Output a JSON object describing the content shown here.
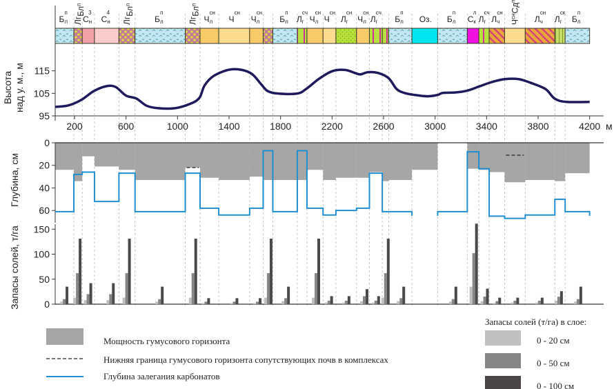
{
  "chart_data": {
    "type": "composite-profile",
    "x_axis": {
      "unit": "м",
      "range": [
        50,
        4250
      ],
      "ticks": [
        200,
        600,
        1000,
        1400,
        1800,
        2200,
        2600,
        3000,
        3400,
        3800,
        4200
      ]
    },
    "boundaries": [
      50,
      195,
      260,
      355,
      545,
      670,
      1060,
      1175,
      1320,
      1560,
      1665,
      1740,
      1930,
      2005,
      2130,
      2230,
      2390,
      2490,
      2590,
      2640,
      2820,
      3020,
      3250,
      3340,
      3420,
      3540,
      3700,
      3930,
      4010,
      4200
    ],
    "soil_strip": {
      "segments": [
        {
          "label": "Б",
          "sub": "л",
          "sup": "п",
          "pattern": "bl"
        },
        {
          "label": "Лг",
          "sub": "",
          "sup": "Бл",
          "pattern": "lg",
          "rotated": true,
          "compact": true
        },
        {
          "label": "С",
          "sub": "н",
          "sup": "3",
          "pattern": "s3"
        },
        {
          "label": "С",
          "sub": "н",
          "sup": "4",
          "pattern": "s4"
        },
        {
          "label": "Лг",
          "sub": "",
          "sup": "Бл",
          "pattern": "lg",
          "rotated": true
        },
        {
          "label": "Б",
          "sub": "л",
          "sup": "п",
          "pattern": "bl"
        },
        {
          "label": "Лг",
          "sub": "",
          "sup": "Бл",
          "pattern": "lg",
          "rotated": true
        },
        {
          "label": "Ч",
          "sub": "л",
          "sup": "сн",
          "pattern": "chl"
        },
        {
          "label": "Ч",
          "sub": "",
          "sup": "сн",
          "pattern": "ch"
        },
        {
          "label": "Ч",
          "sub": "л",
          "sup": "сн",
          "pattern": "chl"
        },
        {
          "label": "",
          "sub": "",
          "sup": "",
          "pattern": "lg"
        },
        {
          "label": "Б",
          "sub": "л",
          "sup": "п",
          "pattern": "bl"
        },
        {
          "label": "Л",
          "sub": "г",
          "sup": "сч",
          "pattern": "stripes"
        },
        {
          "label": "Ч",
          "sub": "л",
          "sup": "сн",
          "pattern": "chl"
        },
        {
          "label": "Ч",
          "sub": "",
          "sup": "сн",
          "pattern": "ch"
        },
        {
          "label": "Л",
          "sub": "г",
          "sup": "сн",
          "pattern": "lgdots"
        },
        {
          "label": "Ч",
          "sub": "л",
          "sup": "сн",
          "pattern": "chl"
        },
        {
          "label": "Л",
          "sub": "г",
          "sup": "сч",
          "pattern": "stripes"
        },
        {
          "label": "",
          "sub": "",
          "sup": "",
          "pattern": "stripes"
        },
        {
          "label": "Б",
          "sub": "л",
          "sup": "п",
          "pattern": "bl"
        },
        {
          "label": "Оз.",
          "sub": "",
          "sup": "",
          "pattern": "oz"
        },
        {
          "label": "Б",
          "sub": "л",
          "sup": "п",
          "pattern": "bl"
        },
        {
          "label": "С",
          "sub": "к",
          "sup": "л",
          "pattern": "sk"
        },
        {
          "label": "Л",
          "sub": "г",
          "sup": "сч",
          "pattern": "stripes2"
        },
        {
          "label": "Л",
          "sub": "ч",
          "sup": "сн",
          "pattern": "hatch"
        },
        {
          "label": "Ч",
          "sub": "л",
          "sup": "сн",
          "pattern": "ch",
          "extra": "Сд",
          "extra_sup": "п",
          "rotated": true
        },
        {
          "label": "Л",
          "sub": "ч",
          "sup": "сн",
          "pattern": "hatch"
        },
        {
          "label": "Л",
          "sub": "г",
          "sup": "ск",
          "pattern": "stripes3"
        },
        {
          "label": "Б",
          "sub": "л",
          "sup": "п",
          "pattern": "bl"
        }
      ]
    },
    "elevation": {
      "ylabel_line1": "Высота",
      "ylabel_line2": "над у. м., м",
      "ylim": [
        95,
        125
      ],
      "yticks": [
        95,
        105,
        115
      ],
      "line_color": "#1f1a5c",
      "points": [
        [
          50,
          99
        ],
        [
          150,
          99.6
        ],
        [
          250,
          102
        ],
        [
          350,
          106
        ],
        [
          450,
          108.2
        ],
        [
          520,
          107.8
        ],
        [
          600,
          104
        ],
        [
          680,
          102.7
        ],
        [
          760,
          99.5
        ],
        [
          850,
          98.4
        ],
        [
          980,
          98.4
        ],
        [
          1100,
          100.4
        ],
        [
          1170,
          103
        ],
        [
          1210,
          108.5
        ],
        [
          1280,
          112.7
        ],
        [
          1400,
          115.5
        ],
        [
          1500,
          115.4
        ],
        [
          1580,
          113.5
        ],
        [
          1650,
          109
        ],
        [
          1700,
          106
        ],
        [
          1780,
          104.9
        ],
        [
          1930,
          104.9
        ],
        [
          2000,
          107
        ],
        [
          2100,
          111.5
        ],
        [
          2200,
          114.8
        ],
        [
          2300,
          115.4
        ],
        [
          2380,
          114
        ],
        [
          2420,
          113.4
        ],
        [
          2480,
          114.4
        ],
        [
          2560,
          114
        ],
        [
          2640,
          111.7
        ],
        [
          2700,
          107
        ],
        [
          2760,
          105.2
        ],
        [
          2840,
          104.3
        ],
        [
          2940,
          103.7
        ],
        [
          3020,
          104.3
        ],
        [
          3060,
          105.2
        ],
        [
          3160,
          105.4
        ],
        [
          3250,
          106.2
        ],
        [
          3340,
          108
        ],
        [
          3440,
          110
        ],
        [
          3540,
          111.3
        ],
        [
          3650,
          111.3
        ],
        [
          3760,
          109.3
        ],
        [
          3860,
          106.8
        ],
        [
          3930,
          102.6
        ],
        [
          4020,
          101.2
        ],
        [
          4200,
          101.2
        ]
      ]
    },
    "depth": {
      "ylabel": "Глубина, см",
      "ylim": [
        0,
        66
      ],
      "yticks": [
        0,
        20,
        40,
        60
      ],
      "humus_color": "#a6a6a6",
      "carbonate_color": "#1f8fd1",
      "humus_depth": [
        24,
        34,
        12,
        21,
        24,
        33,
        22,
        31,
        33,
        30,
        33,
        33,
        33,
        24,
        33,
        31,
        31,
        26,
        34,
        33,
        24,
        0,
        23,
        24,
        26,
        35,
        33,
        34,
        27,
        23
      ],
      "humus_depth_note": "value per interval between boundaries; 0 = no humus (lake)",
      "carbonate_depth": [
        61,
        28,
        26,
        52,
        27,
        61,
        27,
        58,
        64,
        58,
        7,
        61,
        7,
        58,
        64,
        60,
        58,
        27,
        61,
        61,
        null,
        61,
        8,
        23,
        65,
        67,
        64,
        50,
        61
      ],
      "companion_boundary": [
        {
          "x0": 1060,
          "x1": 1175,
          "depth": 22
        },
        {
          "x0": 3540,
          "x1": 3700,
          "depth": 11
        }
      ]
    },
    "salts": {
      "ylabel": "Запасы солей, т/га",
      "ylim": [
        0,
        160
      ],
      "yticks": [
        0,
        50,
        100,
        150
      ],
      "series_names": [
        "0 - 20 см",
        "0 - 50 см",
        "0 - 100 см"
      ],
      "colors": [
        "#c0c0c0",
        "#868686",
        "#4a4a4a"
      ],
      "groups": [
        {
          "x": 120,
          "values": [
            5,
            10,
            35
          ]
        },
        {
          "x": 222,
          "values": [
            13,
            62,
            131
          ]
        },
        {
          "x": 305,
          "values": [
            8,
            20,
            42
          ]
        },
        {
          "x": 480,
          "values": [
            8,
            20,
            42
          ]
        },
        {
          "x": 605,
          "values": [
            13,
            62,
            131
          ]
        },
        {
          "x": 860,
          "values": [
            5,
            10,
            35
          ]
        },
        {
          "x": 1120,
          "values": [
            13,
            62,
            131
          ]
        },
        {
          "x": 1220,
          "values": [
            2,
            5,
            12
          ]
        },
        {
          "x": 1440,
          "values": [
            2,
            5,
            12
          ]
        },
        {
          "x": 1620,
          "values": [
            2,
            5,
            12
          ]
        },
        {
          "x": 1705,
          "values": [
            13,
            62,
            131
          ]
        },
        {
          "x": 1840,
          "values": [
            6,
            12,
            35
          ]
        },
        {
          "x": 2075,
          "values": [
            13,
            62,
            131
          ]
        },
        {
          "x": 2175,
          "values": [
            3,
            7,
            16
          ]
        },
        {
          "x": 2310,
          "values": [
            3,
            7,
            16
          ]
        },
        {
          "x": 2450,
          "values": [
            6,
            16,
            30
          ]
        },
        {
          "x": 2540,
          "values": [
            3,
            7,
            16
          ]
        },
        {
          "x": 2615,
          "values": [
            13,
            62,
            131
          ]
        },
        {
          "x": 2735,
          "values": [
            6,
            12,
            35
          ]
        },
        {
          "x": 3140,
          "values": [
            5,
            10,
            35
          ]
        },
        {
          "x": 3300,
          "values": [
            35,
            102,
            161
          ]
        },
        {
          "x": 3385,
          "values": [
            6,
            15,
            31
          ]
        },
        {
          "x": 3480,
          "values": [
            2,
            6,
            13
          ]
        },
        {
          "x": 3620,
          "values": [
            3,
            7,
            13
          ]
        },
        {
          "x": 3810,
          "values": [
            3,
            7,
            13
          ]
        },
        {
          "x": 3960,
          "values": [
            7,
            15,
            26
          ]
        },
        {
          "x": 4110,
          "values": [
            5,
            10,
            35
          ]
        }
      ]
    }
  },
  "legend": {
    "humus_label": "Мощность гумусового горизонта",
    "companion_label": "Нижняя граница гумусового горизонта сопутствующих почв в комплексах",
    "carbonate_label": "Глубина залегания карбонатов",
    "salts_title": "Запасы солей (т/га) в слое:",
    "salts_items": [
      "0 - 20 см",
      "0 - 50 см",
      "0 - 100 см"
    ]
  }
}
